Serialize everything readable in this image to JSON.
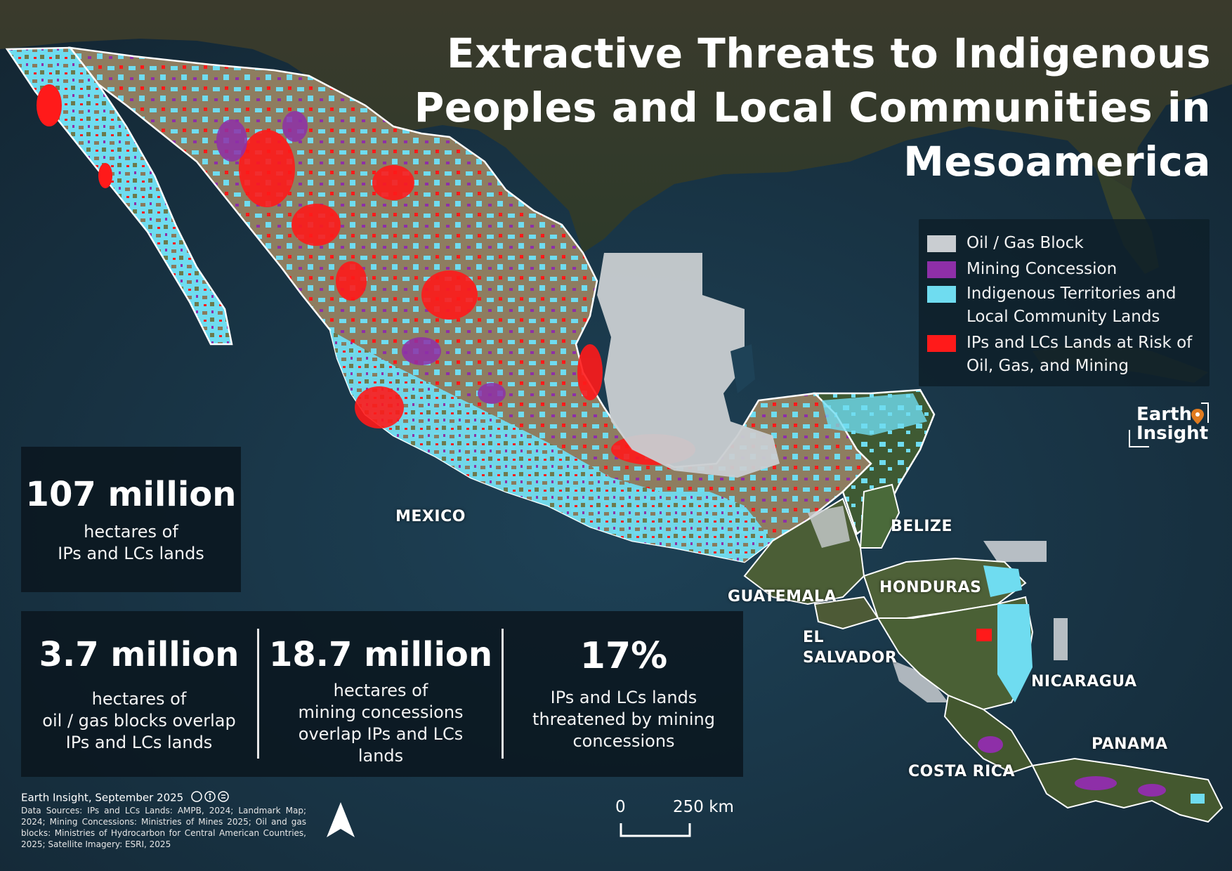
{
  "title": {
    "line1": "Extractive Threats to Indigenous",
    "line2": "Peoples and Local Communities in",
    "line3": "Mesoamerica"
  },
  "legend": [
    {
      "label": "Oil / Gas Block",
      "color": "#c9cdd1"
    },
    {
      "label": "Mining Concession",
      "color": "#8e2fa8"
    },
    {
      "label": "Indigenous Territories and Local Community Lands",
      "color": "#6fdcf0"
    },
    {
      "label": "IPs and LCs Lands at Risk of Oil, Gas, and Mining",
      "color": "#ff1a1a"
    }
  ],
  "stats": {
    "total": {
      "value": "107 million",
      "desc_line1": "hectares of",
      "desc_line2": "IPs and LCs lands"
    },
    "oil_gas": {
      "value": "3.7 million",
      "desc_line1": "hectares of",
      "desc_line2": "oil / gas blocks overlap",
      "desc_line3": "IPs and LCs lands"
    },
    "mining": {
      "value": "18.7 million",
      "desc_line1": "hectares of",
      "desc_line2": "mining concessions",
      "desc_line3": "overlap IPs and LCs",
      "desc_line4": "lands"
    },
    "percent": {
      "value": "17%",
      "desc_line1": "IPs and LCs lands",
      "desc_line2": "threatened by mining",
      "desc_line3": "concessions"
    }
  },
  "countries": {
    "mexico": "MEXICO",
    "belize": "BELIZE",
    "guatemala": "GUATEMALA",
    "honduras": "HONDURAS",
    "el_salvador_1": "EL",
    "el_salvador_2": "SALVADOR",
    "nicaragua": "NICARAGUA",
    "costa_rica": "COSTA RICA",
    "panama": "PANAMA"
  },
  "logo": {
    "line1": "Earth",
    "line2": "Insight",
    "pin_color": "#e07b1f"
  },
  "credit": "Earth Insight, September 2025",
  "sources": "Data Sources: IPs and LCs Lands: AMPB, 2024; Landmark Map; 2024; Mining Concessions: Ministries of Mines 2025; Oil and gas blocks: Ministries of Hydrocarbon for Central American Countries, 2025; Satellite Imagery: ESRI, 2025",
  "scale": {
    "start": "0",
    "end": "250 km"
  },
  "colors": {
    "ocean": "#1b3344",
    "land_dark": "#3d4a30",
    "land_brown": "#8a7a5c",
    "territory": "#6fdcf0",
    "risk": "#ff1a1a",
    "mining": "#8e2fa8",
    "oilgas": "#c9cdd1"
  },
  "icons": [
    "north-arrow-icon",
    "creative-commons-icon",
    "map-pin-icon"
  ]
}
